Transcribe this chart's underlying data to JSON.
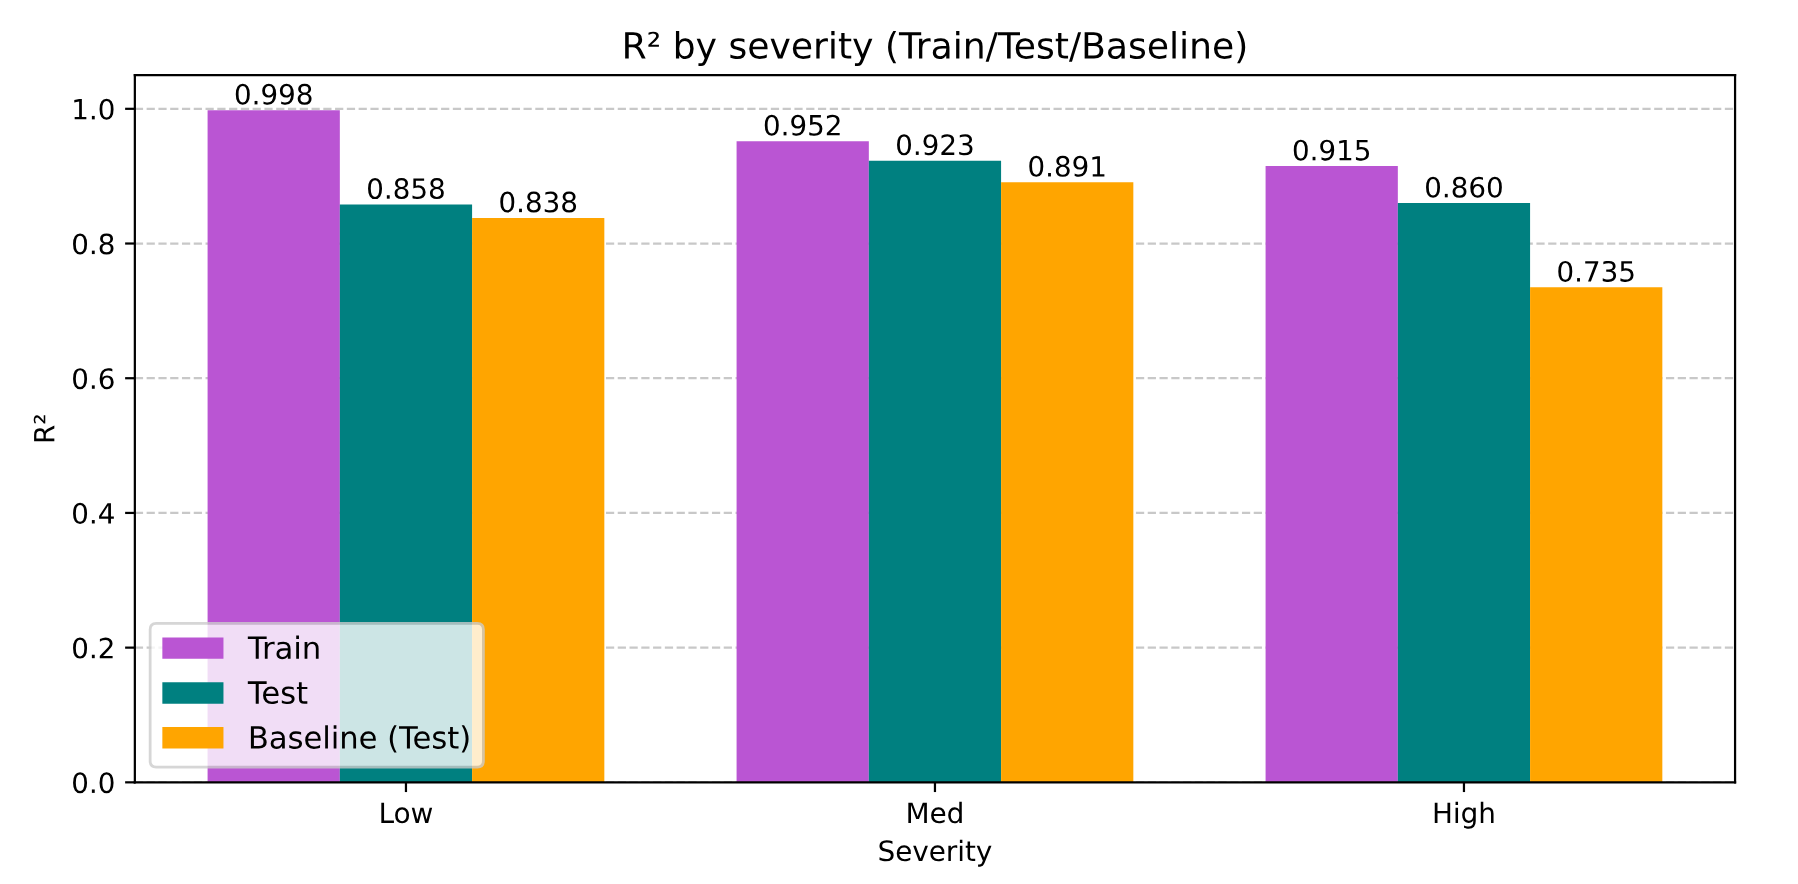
{
  "chart_data": {
    "type": "bar",
    "title": "R² by severity (Train/Test/Baseline)",
    "xlabel": "Severity",
    "ylabel": "R²",
    "categories": [
      "Low",
      "Med",
      "High"
    ],
    "series": [
      {
        "name": "Train",
        "color": "#ba55d3",
        "values": [
          0.998,
          0.952,
          0.915
        ]
      },
      {
        "name": "Test",
        "color": "#008080",
        "values": [
          0.858,
          0.923,
          0.86
        ],
        "value_labels": [
          "0.858",
          "0.923",
          "0.860"
        ]
      },
      {
        "name": "Baseline (Test)",
        "color": "#ffa500",
        "values": [
          0.838,
          0.891,
          0.735
        ]
      }
    ],
    "ylim": [
      0,
      1.05
    ],
    "yticks": [
      {
        "value": 0,
        "label": "0.0"
      },
      {
        "value": 0.2,
        "label": "0.2"
      },
      {
        "value": 0.4,
        "label": "0.4"
      },
      {
        "value": 0.6,
        "label": "0.6"
      },
      {
        "value": 0.8,
        "label": "0.8"
      },
      {
        "value": 1,
        "label": "1.0"
      }
    ],
    "grid": "y",
    "legend": "bottom left",
    "data_labels": true
  }
}
